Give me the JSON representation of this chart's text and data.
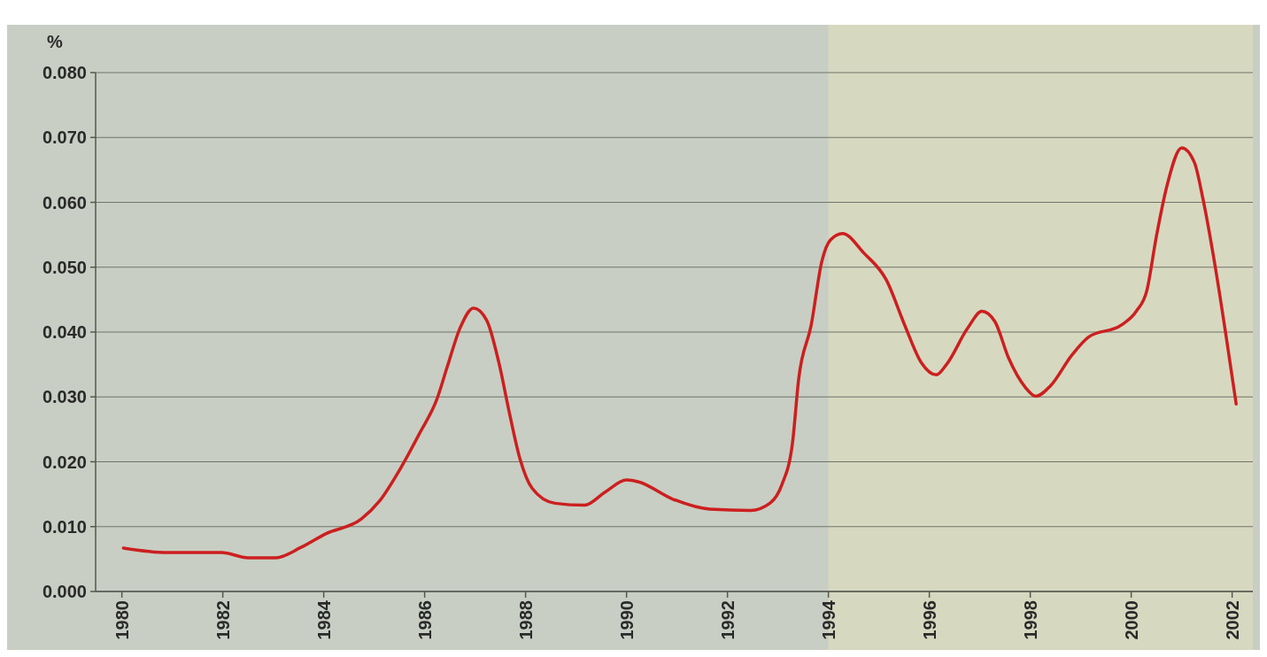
{
  "chart_data": {
    "type": "line",
    "ylabel": "%",
    "grid": "y",
    "marker": "none",
    "line_style": "solid",
    "xlim": [
      1979.48,
      2002.41
    ],
    "ylim": [
      0,
      0.08
    ],
    "yticks": [
      {
        "value": 0,
        "label": "0.000"
      },
      {
        "value": 0.01,
        "label": "0.010"
      },
      {
        "value": 0.02,
        "label": "0.020"
      },
      {
        "value": 0.03,
        "label": "0.030"
      },
      {
        "value": 0.04,
        "label": "0.040"
      },
      {
        "value": 0.05,
        "label": "0.050"
      },
      {
        "value": 0.06,
        "label": "0.060"
      },
      {
        "value": 0.07,
        "label": "0.070"
      },
      {
        "value": 0.08,
        "label": "0.080"
      }
    ],
    "xticks": [
      1980,
      1982,
      1984,
      1986,
      1988,
      1990,
      1992,
      1994,
      1996,
      1998,
      2000,
      2002
    ],
    "bands": [
      {
        "axis": "x",
        "from": 1994,
        "to": 2002.41,
        "label": null,
        "color": "#d7d8c0"
      }
    ],
    "series": [
      {
        "color": "#cc1f1f",
        "x": [
          1980.03,
          1980.9,
          1981.98,
          1982.5,
          1983.05,
          1983.55,
          1984.04,
          1984.75,
          1985.1,
          1985.53,
          1985.9,
          1986.24,
          1986.45,
          1986.7,
          1986.97,
          1987.23,
          1987.47,
          1987.68,
          1987.89,
          1988.13,
          1988.58,
          1989.17,
          1989.57,
          1990.0,
          1990.24,
          1990.9,
          1991.65,
          1992.46,
          1992.84,
          1993.08,
          1993.29,
          1993.41,
          1993.66,
          1993.87,
          1994.04,
          1994.28,
          1994.7,
          1995.15,
          1995.51,
          1995.84,
          1996.14,
          1996.34,
          1996.76,
          1997.04,
          1997.3,
          1997.57,
          1997.9,
          1998.11,
          1998.4,
          1998.82,
          1999.15,
          1999.81,
          2000.1,
          2000.31,
          2000.5,
          2000.71,
          2001.0,
          2001.25,
          2001.42,
          2001.66,
          2001.87,
          2002.08
        ],
        "values": [
          0.0067,
          0.006,
          0.006,
          0.0052,
          0.0052,
          0.0068,
          0.0089,
          0.0112,
          0.0139,
          0.0191,
          0.0244,
          0.0296,
          0.0347,
          0.0406,
          0.0437,
          0.0418,
          0.0353,
          0.0275,
          0.0204,
          0.0159,
          0.0136,
          0.0133,
          0.0153,
          0.0172,
          0.0169,
          0.0143,
          0.0127,
          0.0125,
          0.0136,
          0.0165,
          0.023,
          0.0327,
          0.0411,
          0.0509,
          0.0542,
          0.0552,
          0.0522,
          0.048,
          0.0411,
          0.0353,
          0.0334,
          0.035,
          0.0406,
          0.0432,
          0.0416,
          0.036,
          0.0315,
          0.0301,
          0.0317,
          0.0364,
          0.0392,
          0.0411,
          0.0432,
          0.0464,
          0.0548,
          0.0626,
          0.0684,
          0.0662,
          0.0606,
          0.0503,
          0.0399,
          0.0289
        ]
      }
    ]
  }
}
